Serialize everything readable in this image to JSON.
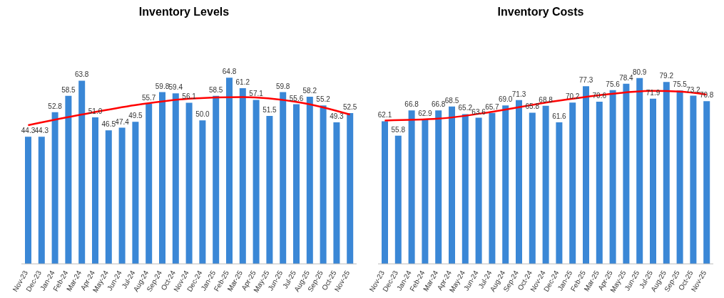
{
  "chart_data": [
    {
      "type": "bar",
      "title": "Inventory Levels",
      "categories": [
        "Nov-23",
        "Dec-23",
        "Jan-24",
        "Feb-24",
        "Mar-24",
        "Apr-24",
        "May-24",
        "Jun-24",
        "Jul-24",
        "Aug-24",
        "Sep-24",
        "Oct-24",
        "Nov-24",
        "Dec-24",
        "Jan-25",
        "Feb-25",
        "Mar-25",
        "Apr-25",
        "May-25",
        "Jun-25",
        "Jul-25",
        "Aug-25",
        "Sep-25",
        "Oct-25",
        "Nov-25"
      ],
      "series": [
        {
          "color": "#3a87d6",
          "values": [
            44.3,
            44.3,
            52.8,
            58.5,
            63.8,
            51.0,
            46.5,
            47.4,
            49.5,
            55.7,
            59.8,
            59.4,
            56.1,
            50.0,
            58.5,
            64.8,
            61.2,
            57.1,
            51.5,
            59.8,
            55.6,
            58.2,
            55.2,
            49.3,
            52.5
          ],
          "value_labels": [
            "44.3",
            "44.3",
            "52.8",
            "58.5",
            "63.8",
            "51.0",
            "46.5",
            "47.4",
            "49.5",
            "55.7",
            "59.8",
            "59.4",
            "56.1",
            "50.0",
            "58.5",
            "64.8",
            "61.2",
            "57.1",
            "51.5",
            "59.8",
            "55.6",
            "58.2",
            "55.2",
            "49.3",
            "52.5"
          ]
        },
        {
          "type": "line",
          "color": "#ff0000",
          "values": [
            48.3,
            null,
            null,
            null,
            52.0,
            null,
            null,
            null,
            55.3,
            null,
            null,
            null,
            57.5,
            null,
            null,
            null,
            58.1,
            null,
            null,
            null,
            56.4,
            null,
            54.5,
            null,
            52.0
          ]
        }
      ]
    },
    {
      "type": "bar",
      "title": "Inventory Costs",
      "categories": [
        "Nov-23",
        "Dec-23",
        "Jan-24",
        "Feb-24",
        "Mar-24",
        "Apr-24",
        "May-24",
        "Jun-24",
        "Jul-24",
        "Aug-24",
        "Sep-24",
        "Oct-24",
        "Nov-24",
        "Dec-24",
        "Jan-25",
        "Feb-25",
        "Mar-25",
        "Apr-25",
        "May-25",
        "Jun-25",
        "Jul-25",
        "Aug-25",
        "Sep-25",
        "Oct-25",
        "Nov-25"
      ],
      "series": [
        {
          "color": "#3a87d6",
          "values": [
            62.1,
            55.8,
            66.8,
            62.9,
            66.8,
            68.5,
            65.2,
            63.6,
            65.7,
            69.0,
            71.3,
            65.8,
            68.8,
            61.6,
            70.2,
            77.3,
            70.6,
            75.6,
            78.4,
            80.9,
            71.9,
            79.2,
            75.5,
            73.2,
            70.8
          ],
          "value_labels": [
            "62.1",
            "55.8",
            "66.8",
            "62.9",
            "66.8",
            "68.5",
            "65.2",
            "63.6",
            "65.7",
            "69.0",
            "71.3",
            "65.8",
            "68.8",
            "61.6",
            "70.2",
            "77.3",
            "70.6",
            "75.6",
            "78.4",
            "80.9",
            "71.9",
            "79.2",
            "75.5",
            "73.2",
            "70.8"
          ]
        },
        {
          "type": "line",
          "color": "#ff0000",
          "values": [
            62.4,
            null,
            null,
            null,
            63.2,
            null,
            null,
            null,
            66.2,
            null,
            null,
            null,
            70.2,
            null,
            null,
            null,
            73.4,
            null,
            null,
            null,
            75.3,
            null,
            75.0,
            null,
            73.7
          ]
        }
      ]
    }
  ]
}
